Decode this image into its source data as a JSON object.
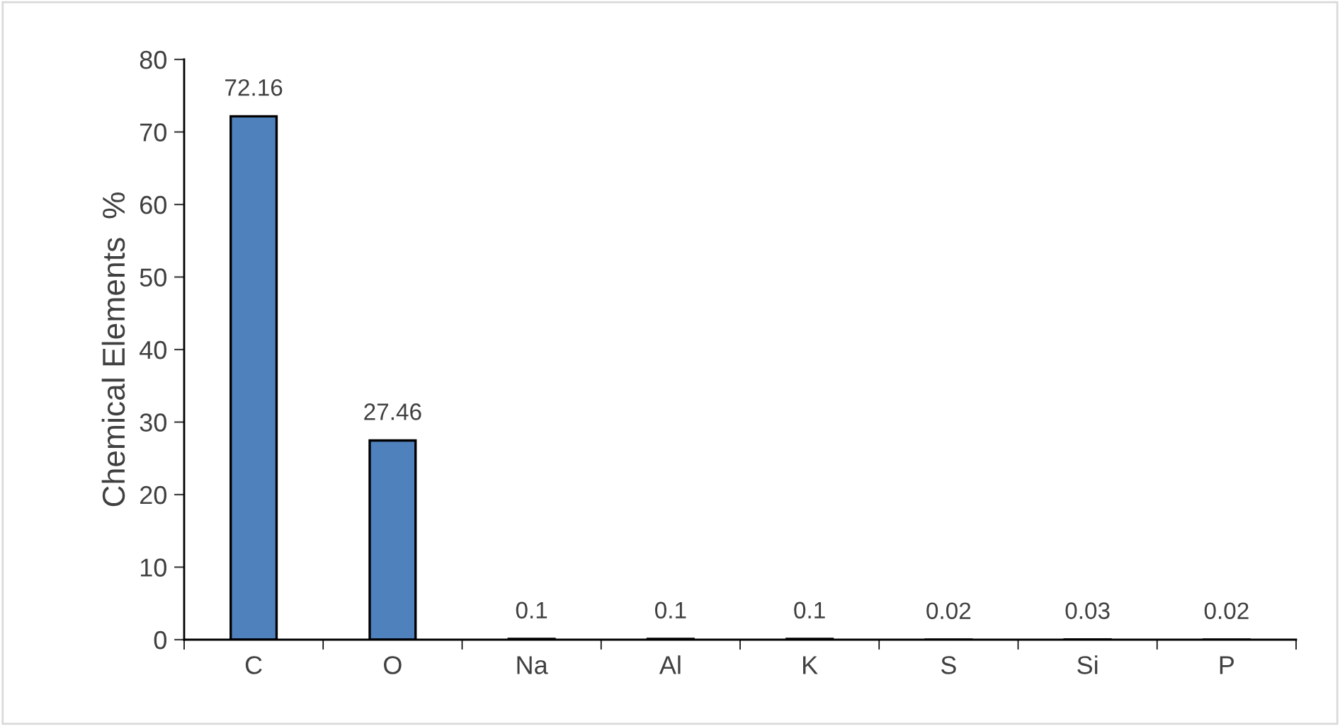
{
  "chart_data": {
    "type": "bar",
    "ylabel": "Chemical Elements  %",
    "categories": [
      "C",
      "O",
      "Na",
      "Al",
      "K",
      "S",
      "Si",
      "P"
    ],
    "values": [
      72.16,
      27.46,
      0.1,
      0.1,
      0.1,
      0.02,
      0.03,
      0.02
    ],
    "color": "#4f81bd",
    "ylim": [
      0,
      80
    ],
    "yticks": [
      0,
      10,
      20,
      30,
      40,
      50,
      60,
      70,
      80
    ],
    "data_labels": true,
    "grid": false,
    "legend": false
  }
}
